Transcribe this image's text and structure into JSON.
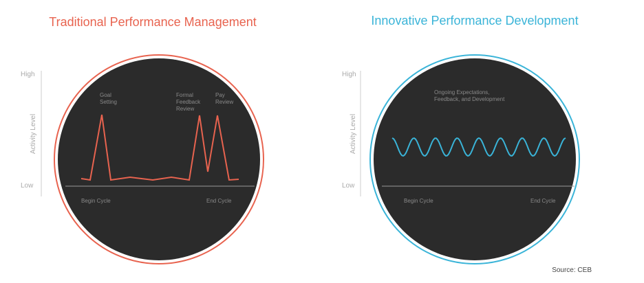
{
  "left_panel": {
    "title": "Traditional Performance Management",
    "y_axis_label": "Activity Level",
    "y_high": "High",
    "y_low": "Low",
    "x_start": "Begin Cycle",
    "x_end": "End Cycle",
    "annotations": [
      [
        "Goal",
        "Setting"
      ],
      [
        "Formal",
        "Feedback",
        "Review"
      ],
      [
        "Pay",
        "Review"
      ]
    ]
  },
  "right_panel": {
    "title": "Innovative Performance Development",
    "y_axis_label": "Activity Level",
    "y_high": "High",
    "y_low": "Low",
    "x_start": "Begin Cycle",
    "x_end": "End Cycle",
    "annotations": [
      [
        "Ongoing Expectations,",
        "Feedback, and Development"
      ]
    ]
  },
  "source": "Source: CEB"
}
